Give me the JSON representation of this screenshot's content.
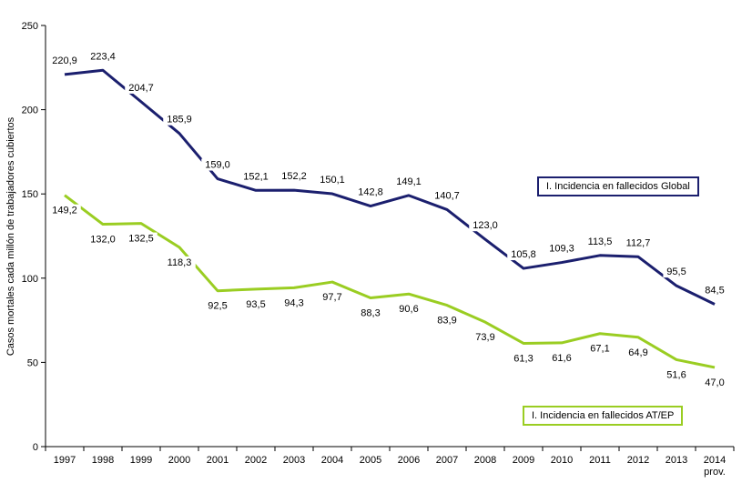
{
  "chart_data": {
    "type": "line",
    "ylabel": "Casos mortales cada millón de trabajadores cubiertos",
    "xlabel": "",
    "ylim": [
      0,
      250
    ],
    "yticks": [
      0,
      50,
      100,
      150,
      200,
      250
    ],
    "categories": [
      "1997",
      "1998",
      "1999",
      "2000",
      "2001",
      "2002",
      "2003",
      "2004",
      "2005",
      "2006",
      "2007",
      "2008",
      "2009",
      "2010",
      "2011",
      "2012",
      "2013",
      "2014"
    ],
    "category_sublabels": {
      "2014": "prov."
    },
    "grid": false,
    "series": [
      {
        "name": "I. Incidencia en fallecidos Global",
        "color": "#1b1f6e",
        "values": [
          220.9,
          223.4,
          204.7,
          185.9,
          159.0,
          152.1,
          152.2,
          150.1,
          142.8,
          149.1,
          140.7,
          123.0,
          105.8,
          109.3,
          113.5,
          112.7,
          95.5,
          84.5
        ],
        "labels": [
          "220,9",
          "223,4",
          "204,7",
          "185,9",
          "159,0",
          "152,1",
          "152,2",
          "150,1",
          "142,8",
          "149,1",
          "140,7",
          "123,0",
          "105,8",
          "109,3",
          "113,5",
          "112,7",
          "95,5",
          "84,5"
        ]
      },
      {
        "name": "I. Incidencia en fallecidos AT/EP",
        "color": "#9acd22",
        "values": [
          149.2,
          132.0,
          132.5,
          118.3,
          92.5,
          93.5,
          94.3,
          97.7,
          88.3,
          90.6,
          83.9,
          73.9,
          61.3,
          61.6,
          67.1,
          64.9,
          51.6,
          47.0
        ],
        "labels": [
          "149,2",
          "132,0",
          "132,5",
          "118,3",
          "92,5",
          "93,5",
          "94,3",
          "97,7",
          "88,3",
          "90,6",
          "83,9",
          "73,9",
          "61,3",
          "61,6",
          "67,1",
          "64,9",
          "51,6",
          "47,0"
        ]
      }
    ]
  }
}
